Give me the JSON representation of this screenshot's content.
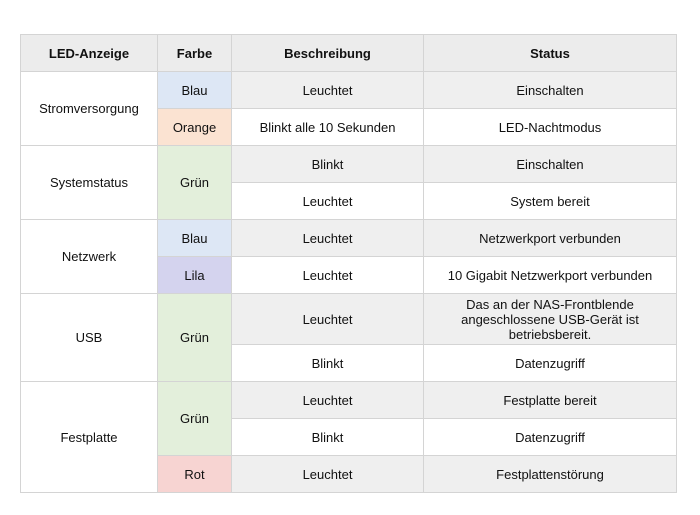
{
  "table": {
    "headers": [
      "LED-Anzeige",
      "Farbe",
      "Beschreibung",
      "Status"
    ],
    "groups": [
      {
        "name": "Stromversorgung",
        "colors": [
          {
            "label": "Blau",
            "color": "#dde7f5",
            "rows": [
              {
                "beschreibung": "Leuchtet",
                "status": "Einschalten"
              }
            ]
          },
          {
            "label": "Orange",
            "color": "#fbe3d2",
            "rows": [
              {
                "beschreibung": "Blinkt alle 10 Sekunden",
                "status": "LED-Nachtmodus"
              }
            ]
          }
        ]
      },
      {
        "name": "Systemstatus",
        "colors": [
          {
            "label": "Grün",
            "color": "#e3efdb",
            "rows": [
              {
                "beschreibung": "Blinkt",
                "status": "Einschalten"
              },
              {
                "beschreibung": "Leuchtet",
                "status": "System bereit"
              }
            ]
          }
        ]
      },
      {
        "name": "Netzwerk",
        "colors": [
          {
            "label": "Blau",
            "color": "#dde7f5",
            "rows": [
              {
                "beschreibung": "Leuchtet",
                "status": "Netzwerkport verbunden"
              }
            ]
          },
          {
            "label": "Lila",
            "color": "#d4d3ee",
            "rows": [
              {
                "beschreibung": "Leuchtet",
                "status": "10 Gigabit Netzwerkport verbunden"
              }
            ]
          }
        ]
      },
      {
        "name": "USB",
        "colors": [
          {
            "label": "Grün",
            "color": "#e3efdb",
            "rows": [
              {
                "beschreibung": "Leuchtet",
                "status": "Das an der NAS-Frontblende angeschlossene USB-Gerät ist betriebsbereit."
              },
              {
                "beschreibung": "Blinkt",
                "status": "Datenzugriff"
              }
            ]
          }
        ]
      },
      {
        "name": "Festplatte",
        "colors": [
          {
            "label": "Grün",
            "color": "#e3efdb",
            "rows": [
              {
                "beschreibung": "Leuchtet",
                "status": "Festplatte bereit"
              },
              {
                "beschreibung": "Blinkt",
                "status": "Datenzugriff"
              }
            ]
          },
          {
            "label": "Rot",
            "color": "#f7d4d2",
            "rows": [
              {
                "beschreibung": "Leuchtet",
                "status": "Festplattenstörung"
              }
            ]
          }
        ]
      }
    ]
  }
}
